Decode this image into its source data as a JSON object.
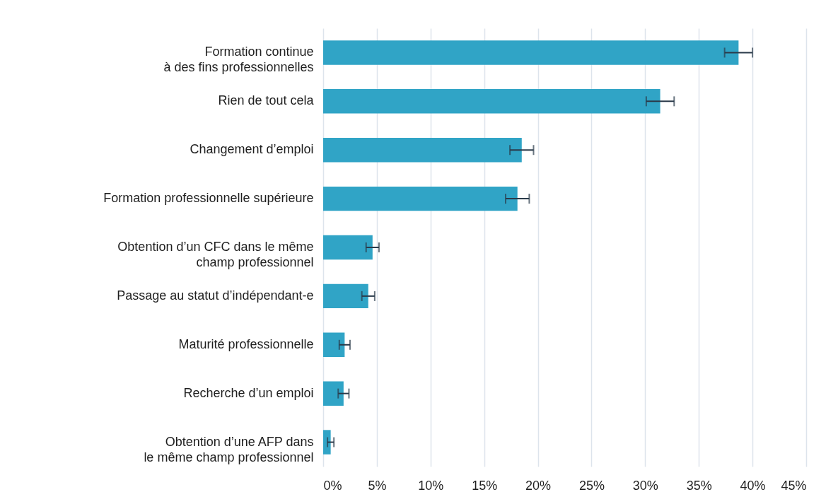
{
  "chart_data": {
    "type": "bar",
    "orientation": "horizontal",
    "categories": [
      "Formation continue\nà des fins professionnelles",
      "Rien de tout cela",
      "Changement d’emploi",
      "Formation professionnelle supérieure",
      "Obtention d’un CFC dans le même\nchamp professionnel",
      "Passage au statut d’indépendant-e",
      "Maturité professionnelle",
      "Recherche d’un emploi",
      "Obtention d’une AFP dans\nle même champ professionnel"
    ],
    "values": [
      38.7,
      31.4,
      18.5,
      18.1,
      4.6,
      4.2,
      2.0,
      1.9,
      0.7
    ],
    "errors": [
      1.3,
      1.3,
      1.1,
      1.1,
      0.6,
      0.6,
      0.5,
      0.5,
      0.3
    ],
    "color": "#30a4c6",
    "xlim": [
      0,
      45
    ],
    "xticks": [
      {
        "value": 0,
        "label": "0%"
      },
      {
        "value": 5,
        "label": "5%"
      },
      {
        "value": 10,
        "label": "10%"
      },
      {
        "value": 15,
        "label": "15%"
      },
      {
        "value": 20,
        "label": "20%"
      },
      {
        "value": 25,
        "label": "25%"
      },
      {
        "value": 30,
        "label": "30%"
      },
      {
        "value": 35,
        "label": "35%"
      },
      {
        "value": 40,
        "label": "40%"
      },
      {
        "value": 45,
        "label": "45%"
      }
    ],
    "grid": "x"
  }
}
